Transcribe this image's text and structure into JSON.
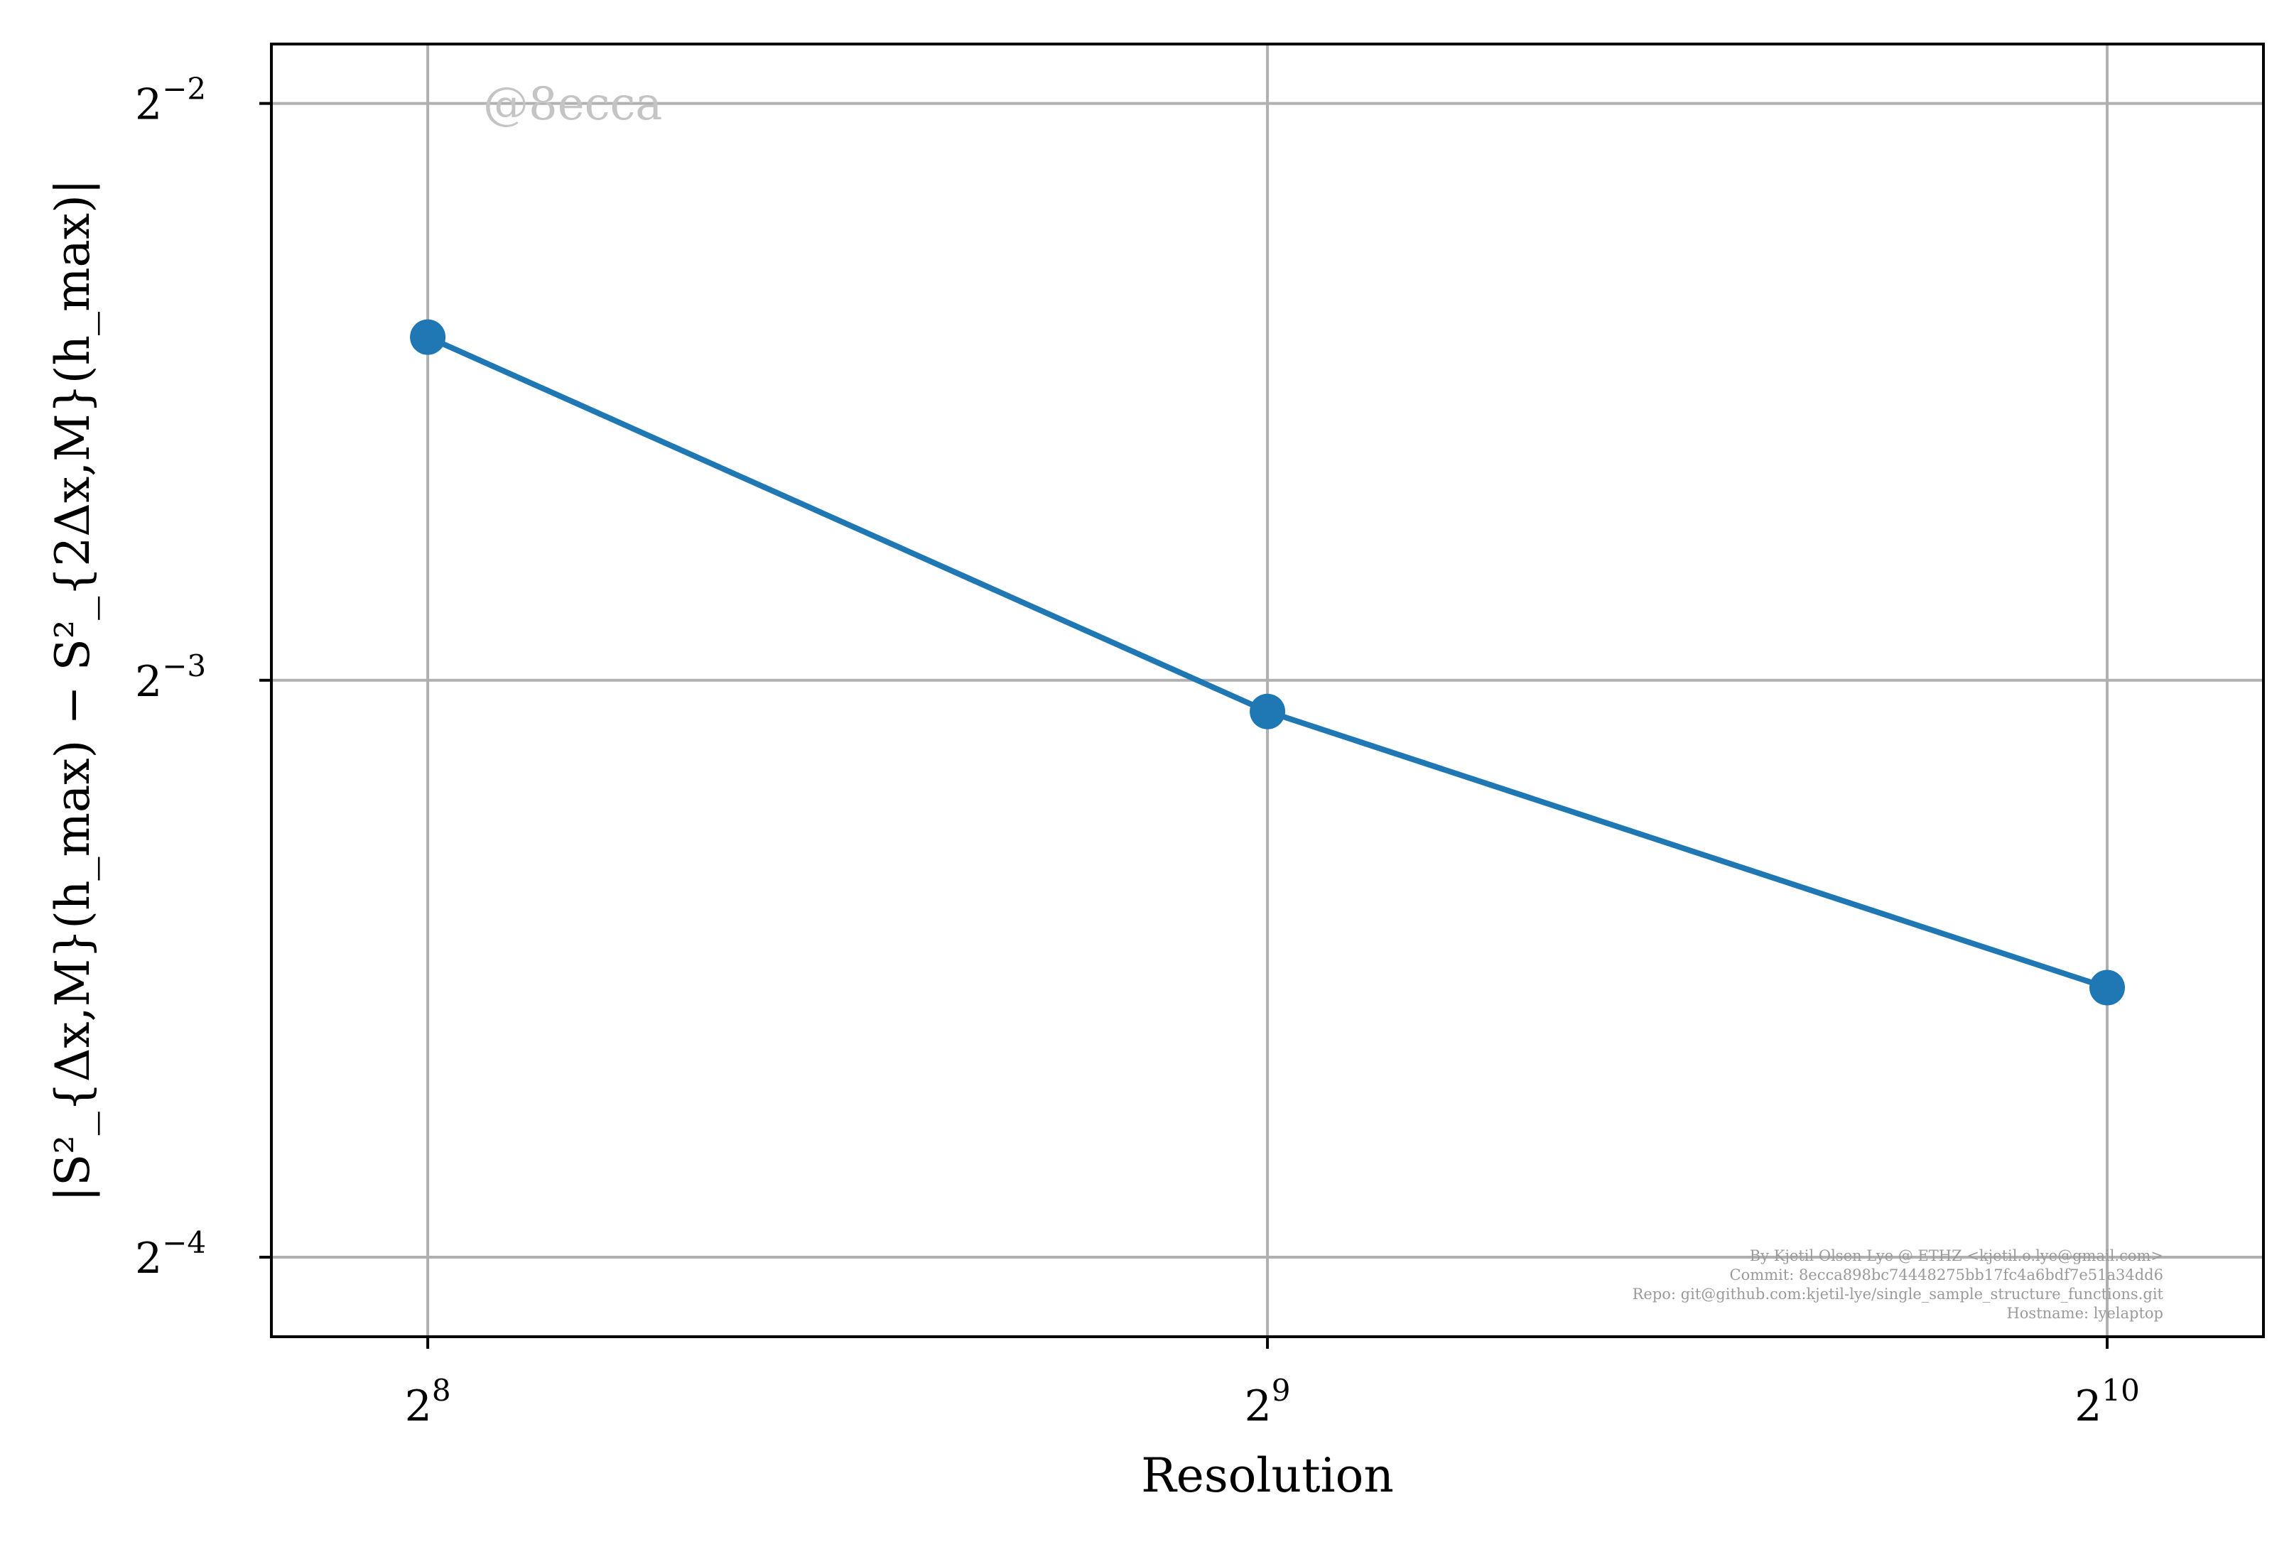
{
  "chart_data": {
    "type": "line",
    "x_scale": "log2",
    "y_scale": "log2",
    "xlabel": "Resolution",
    "ylabel": "|S²_{Δx,M}(h_max) − S²_{2Δx,M}(h_max)|",
    "x": [
      256,
      512,
      1024
    ],
    "series": [
      {
        "values": [
          0.1888,
          0.1204,
          0.0864
        ],
        "color": "#1f77b4"
      }
    ],
    "xlim": [
      225,
      1165
    ],
    "ylim": [
      0.0568,
      0.2685
    ],
    "x_ticks": [
      {
        "value": 256,
        "base": "2",
        "exp": "8"
      },
      {
        "value": 512,
        "base": "2",
        "exp": "9"
      },
      {
        "value": 1024,
        "base": "2",
        "exp": "10"
      }
    ],
    "y_ticks": [
      {
        "value": 0.25,
        "base": "2",
        "exp": "−2"
      },
      {
        "value": 0.125,
        "base": "2",
        "exp": "−3"
      },
      {
        "value": 0.0625,
        "base": "2",
        "exp": "−4"
      }
    ],
    "grid": true,
    "grid_color": "#b0b0b0",
    "watermark": "@8ecca",
    "credits": [
      "By Kjetil Olsen Lye @ ETHZ <kjetil.o.lye@gmail.com>",
      "Commit: 8ecca898bc74448275bb17fc4a6bdf7e51a34dd6",
      "Repo: git@github.com:kjetil-lye/single_sample_structure_functions.git",
      "Hostname: lyelaptop"
    ]
  }
}
